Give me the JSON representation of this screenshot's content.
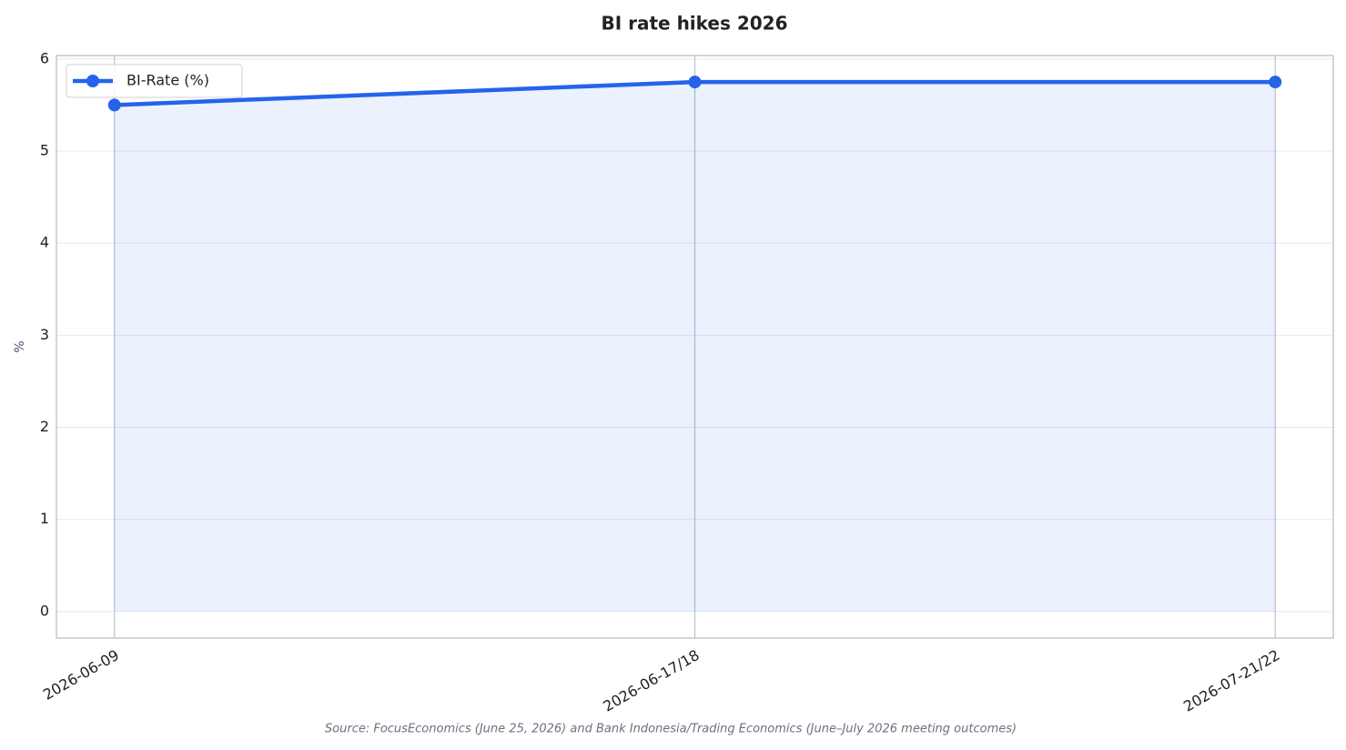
{
  "chart_data": {
    "type": "line",
    "title": "BI rate hikes 2026",
    "y_label": "%",
    "source": "Source: FocusEconomics (June 25, 2026) and Bank Indonesia/Trading Economics (June–July 2026 meeting outcomes)",
    "categories": [
      "2026-06-09",
      "2026-06-17/18",
      "2026-07-21/22"
    ],
    "series": [
      {
        "name": "BI-Rate (%)",
        "color": "#2563eb",
        "values": [
          5.5,
          5.75,
          5.75
        ]
      }
    ],
    "ylim": [
      -0.2875,
      6.0375
    ],
    "yticks": [
      0,
      1,
      2,
      3,
      4,
      5,
      6
    ],
    "grid": true,
    "legend": "upper left",
    "fill": true
  }
}
